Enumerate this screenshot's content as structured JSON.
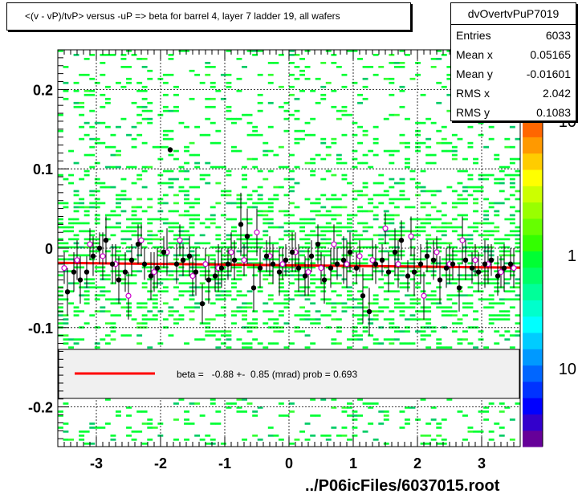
{
  "title": "<(v - vP)/tvP> versus  -uP => beta for barrel 4, layer 7 ladder 19, all wafers",
  "stats": {
    "name": "dvOvertvPuP7019",
    "rows": [
      {
        "label": "Entries",
        "value": "6033"
      },
      {
        "label": "Mean x",
        "value": "0.05165"
      },
      {
        "label": "Mean y",
        "value": "-0.01601"
      },
      {
        "label": "RMS x",
        "value": "2.042"
      },
      {
        "label": "RMS y",
        "value": "0.1083"
      }
    ]
  },
  "legend": {
    "text": "beta =   -0.88 +-  0.85 (mrad) prob = 0.693",
    "line_color": "#ff0000"
  },
  "xlabel": "../P06icFiles/6037015.root",
  "chart_data": {
    "type": "heatmap",
    "xlim": [
      -3.6,
      3.6
    ],
    "ylim": [
      -0.25,
      0.25
    ],
    "xticks": [
      {
        "v": -3,
        "label": "-3"
      },
      {
        "v": -2,
        "label": "-2"
      },
      {
        "v": -1,
        "label": "-1"
      },
      {
        "v": 0,
        "label": "0"
      },
      {
        "v": 1,
        "label": "1"
      },
      {
        "v": 2,
        "label": "2"
      },
      {
        "v": 3,
        "label": "3"
      }
    ],
    "yticks": [
      {
        "v": 0.2,
        "label": "0.2"
      },
      {
        "v": 0.1,
        "label": "0.1"
      },
      {
        "v": 0,
        "label": "0"
      },
      {
        "v": -0.1,
        "label": "-0.1"
      },
      {
        "v": -0.2,
        "label": "-0.2"
      }
    ],
    "grid": true,
    "colorbar": {
      "scale": "log",
      "labels": [
        {
          "v": 10,
          "label": "10"
        },
        {
          "v": 1,
          "label": "1"
        },
        {
          "v": 10,
          "label": "10"
        }
      ]
    },
    "fit": {
      "x": [
        -3.6,
        3.6
      ],
      "y": [
        -0.0185,
        -0.0245
      ],
      "color": "#ff0000"
    },
    "profile_black": {
      "x": [
        -3.45,
        -3.35,
        -3.25,
        -3.15,
        -3.05,
        -2.95,
        -2.85,
        -2.75,
        -2.65,
        -2.55,
        -2.45,
        -2.35,
        -2.25,
        -2.15,
        -2.05,
        -1.95,
        -1.85,
        -1.75,
        -1.65,
        -1.55,
        -1.45,
        -1.35,
        -1.25,
        -1.15,
        -1.05,
        -0.95,
        -0.85,
        -0.75,
        -0.65,
        -0.55,
        -0.45,
        -0.35,
        -0.25,
        -0.15,
        -0.05,
        0.05,
        0.15,
        0.25,
        0.35,
        0.45,
        0.55,
        0.65,
        0.75,
        0.85,
        0.95,
        1.05,
        1.15,
        1.25,
        1.35,
        1.45,
        1.55,
        1.65,
        1.75,
        1.85,
        1.95,
        2.05,
        2.15,
        2.25,
        2.35,
        2.45,
        2.55,
        2.65,
        2.75,
        2.85,
        2.95,
        3.05,
        3.15,
        3.25,
        3.35,
        3.45
      ],
      "y": [
        -0.055,
        -0.03,
        -0.04,
        -0.03,
        -0.01,
        0.0,
        0.01,
        -0.02,
        -0.04,
        -0.03,
        -0.015,
        0.005,
        -0.02,
        -0.035,
        -0.025,
        -0.005,
        0.124,
        -0.02,
        -0.015,
        -0.01,
        -0.03,
        -0.07,
        -0.04,
        -0.035,
        -0.025,
        -0.02,
        -0.015,
        0.03,
        0.015,
        -0.05,
        -0.025,
        -0.01,
        -0.02,
        -0.03,
        -0.015,
        -0.005,
        -0.025,
        -0.035,
        -0.01,
        0.005,
        -0.04,
        -0.025,
        -0.02,
        -0.015,
        -0.005,
        -0.025,
        -0.06,
        -0.08,
        -0.02,
        -0.015,
        -0.03,
        -0.005,
        0.01,
        -0.035,
        -0.03,
        -0.02,
        -0.01,
        -0.015,
        -0.04,
        -0.025,
        -0.02,
        -0.05,
        -0.015,
        -0.025,
        -0.03,
        -0.02,
        -0.015,
        -0.035,
        -0.025,
        -0.02
      ],
      "err": [
        0.03,
        0.025,
        0.03,
        0.02,
        0.025,
        0.02,
        0.03,
        0.025,
        0.03,
        0.025,
        0.02,
        0.025,
        0.02,
        0.03,
        0.025,
        0.02,
        0.0,
        0.025,
        0.02,
        0.025,
        0.03,
        0.025,
        0.03,
        0.02,
        0.025,
        0.02,
        0.025,
        0.04,
        0.035,
        0.03,
        0.025,
        0.02,
        0.025,
        0.03,
        0.02,
        0.025,
        0.03,
        0.025,
        0.02,
        0.025,
        0.03,
        0.025,
        0.02,
        0.03,
        0.025,
        0.02,
        0.035,
        0.03,
        0.025,
        0.02,
        0.025,
        0.03,
        0.025,
        0.02,
        0.03,
        0.025,
        0.02,
        0.025,
        0.03,
        0.025,
        0.02,
        0.03,
        0.025,
        0.02,
        0.025,
        0.03,
        0.02,
        0.025,
        0.03,
        0.02
      ]
    },
    "profile_magenta": {
      "x": [
        -3.5,
        -3.3,
        -3.1,
        -2.9,
        -2.7,
        -2.5,
        -2.3,
        -2.1,
        -1.9,
        -1.7,
        -1.5,
        -1.3,
        -1.1,
        -0.9,
        -0.7,
        -0.5,
        -0.3,
        -0.1,
        0.1,
        0.3,
        0.5,
        0.7,
        0.9,
        1.1,
        1.3,
        1.5,
        1.7,
        1.9,
        2.1,
        2.3,
        2.5,
        2.7,
        2.9,
        3.1,
        3.3,
        3.5
      ],
      "y": [
        -0.025,
        -0.015,
        0.005,
        -0.01,
        -0.02,
        -0.06,
        0.01,
        -0.03,
        -0.005,
        0.01,
        -0.035,
        -0.02,
        -0.025,
        -0.005,
        -0.015,
        0.02,
        -0.01,
        -0.02,
        -0.005,
        -0.03,
        -0.025,
        0.005,
        -0.02,
        -0.01,
        -0.015,
        0.025,
        -0.02,
        0.015,
        -0.06,
        -0.005,
        -0.02,
        0.01,
        -0.015,
        -0.02,
        -0.03,
        -0.025
      ],
      "err": [
        0.02,
        0.025,
        0.02,
        0.03,
        0.025,
        0.03,
        0.02,
        0.025,
        0.03,
        0.02,
        0.025,
        0.02,
        0.03,
        0.025,
        0.02,
        0.03,
        0.025,
        0.02,
        0.025,
        0.03,
        0.02,
        0.025,
        0.03,
        0.02,
        0.025,
        0.02,
        0.03,
        0.025,
        0.03,
        0.02,
        0.025,
        0.03,
        0.02,
        0.025,
        0.02,
        0.025
      ]
    }
  }
}
